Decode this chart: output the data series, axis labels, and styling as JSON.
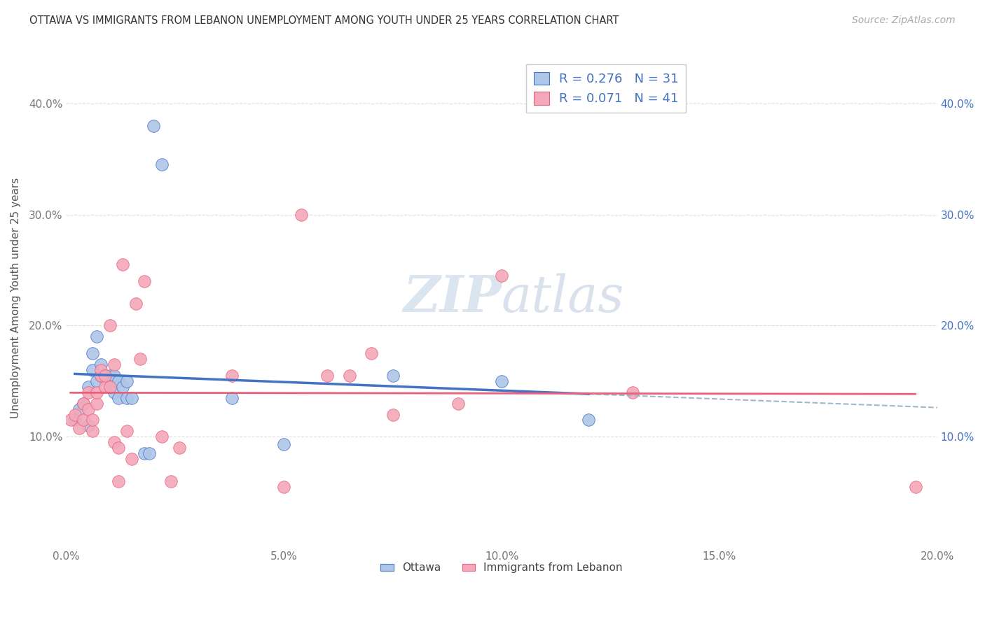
{
  "title": "OTTAWA VS IMMIGRANTS FROM LEBANON UNEMPLOYMENT AMONG YOUTH UNDER 25 YEARS CORRELATION CHART",
  "source": "Source: ZipAtlas.com",
  "ylabel": "Unemployment Among Youth under 25 years",
  "legend_bottom": [
    "Ottawa",
    "Immigrants from Lebanon"
  ],
  "R_ottawa": 0.276,
  "N_ottawa": 31,
  "R_lebanon": 0.071,
  "N_lebanon": 41,
  "xlim": [
    0.0,
    0.2
  ],
  "ylim": [
    0.0,
    0.45
  ],
  "xticks": [
    0.0,
    0.05,
    0.1,
    0.15,
    0.2
  ],
  "yticks": [
    0.1,
    0.2,
    0.3,
    0.4
  ],
  "xticklabels": [
    "0.0%",
    "5.0%",
    "10.0%",
    "15.0%",
    "20.0%"
  ],
  "yticklabels": [
    "10.0%",
    "20.0%",
    "30.0%",
    "40.0%"
  ],
  "color_ottawa": "#aec6e8",
  "color_lebanon": "#f4a8ba",
  "line_color_ottawa": "#4472c4",
  "line_color_lebanon": "#e8607a",
  "dashed_line_color": "#a0b8cc",
  "ottawa_points": [
    [
      0.002,
      0.115
    ],
    [
      0.003,
      0.125
    ],
    [
      0.004,
      0.13
    ],
    [
      0.005,
      0.11
    ],
    [
      0.005,
      0.145
    ],
    [
      0.006,
      0.175
    ],
    [
      0.006,
      0.16
    ],
    [
      0.007,
      0.19
    ],
    [
      0.007,
      0.15
    ],
    [
      0.008,
      0.155
    ],
    [
      0.008,
      0.165
    ],
    [
      0.009,
      0.155
    ],
    [
      0.01,
      0.155
    ],
    [
      0.01,
      0.145
    ],
    [
      0.011,
      0.155
    ],
    [
      0.011,
      0.14
    ],
    [
      0.012,
      0.15
    ],
    [
      0.012,
      0.135
    ],
    [
      0.013,
      0.145
    ],
    [
      0.014,
      0.15
    ],
    [
      0.014,
      0.135
    ],
    [
      0.015,
      0.135
    ],
    [
      0.018,
      0.085
    ],
    [
      0.019,
      0.085
    ],
    [
      0.02,
      0.38
    ],
    [
      0.022,
      0.345
    ],
    [
      0.038,
      0.135
    ],
    [
      0.05,
      0.093
    ],
    [
      0.075,
      0.155
    ],
    [
      0.1,
      0.15
    ],
    [
      0.12,
      0.115
    ]
  ],
  "lebanon_points": [
    [
      0.001,
      0.115
    ],
    [
      0.002,
      0.12
    ],
    [
      0.003,
      0.108
    ],
    [
      0.004,
      0.115
    ],
    [
      0.004,
      0.13
    ],
    [
      0.005,
      0.125
    ],
    [
      0.005,
      0.14
    ],
    [
      0.006,
      0.105
    ],
    [
      0.006,
      0.115
    ],
    [
      0.007,
      0.13
    ],
    [
      0.007,
      0.14
    ],
    [
      0.008,
      0.155
    ],
    [
      0.008,
      0.16
    ],
    [
      0.009,
      0.145
    ],
    [
      0.009,
      0.155
    ],
    [
      0.01,
      0.145
    ],
    [
      0.01,
      0.2
    ],
    [
      0.011,
      0.165
    ],
    [
      0.011,
      0.095
    ],
    [
      0.012,
      0.09
    ],
    [
      0.012,
      0.06
    ],
    [
      0.013,
      0.255
    ],
    [
      0.014,
      0.105
    ],
    [
      0.015,
      0.08
    ],
    [
      0.016,
      0.22
    ],
    [
      0.017,
      0.17
    ],
    [
      0.018,
      0.24
    ],
    [
      0.022,
      0.1
    ],
    [
      0.024,
      0.06
    ],
    [
      0.026,
      0.09
    ],
    [
      0.038,
      0.155
    ],
    [
      0.05,
      0.055
    ],
    [
      0.054,
      0.3
    ],
    [
      0.06,
      0.155
    ],
    [
      0.065,
      0.155
    ],
    [
      0.07,
      0.175
    ],
    [
      0.075,
      0.12
    ],
    [
      0.09,
      0.13
    ],
    [
      0.1,
      0.245
    ],
    [
      0.13,
      0.14
    ],
    [
      0.195,
      0.055
    ]
  ],
  "background_color": "#ffffff",
  "grid_color": "#dddddd",
  "watermark_text": "ZIPAtlas",
  "watermark_color": "#d0dce8",
  "zip_color": "#c8d8e8",
  "atlas_color": "#b8c8d8"
}
